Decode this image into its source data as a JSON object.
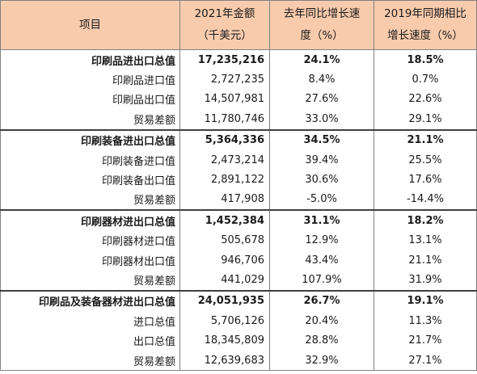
{
  "header": {
    "col1": "项目",
    "col2": [
      "2021年金额",
      "（千美元）"
    ],
    "col3": [
      "去年同比增长速",
      "度（%）"
    ],
    "col4": [
      "2019年同期相比",
      "增长速度（%）"
    ]
  },
  "rows": [
    {
      "item": "印刷品进出口总值",
      "amount": "17,235,216",
      "yoy": "24.1%",
      "vs2019": "18.5%"
    },
    {
      "item": "印刷品进口值",
      "amount": "2,727,235",
      "yoy": "8.4%",
      "vs2019": "0.7%"
    },
    {
      "item": "印刷品出口值",
      "amount": "14,507,981",
      "yoy": "27.6%",
      "vs2019": "22.6%"
    },
    {
      "item": "贸易差额",
      "amount": "11,780,746",
      "yoy": "33.0%",
      "vs2019": "29.1%"
    },
    {
      "item": "印刷装备进出口总值",
      "amount": "5,364,336",
      "yoy": "34.5%",
      "vs2019": "21.1%"
    },
    {
      "item": "印刷装备进口值",
      "amount": "2,473,214",
      "yoy": "39.4%",
      "vs2019": "25.5%"
    },
    {
      "item": "印刷装备出口值",
      "amount": "2,891,122",
      "yoy": "30.6%",
      "vs2019": "17.6%"
    },
    {
      "item": "贸易差额",
      "amount": "417,908",
      "yoy": "-5.0%",
      "vs2019": "-14.4%"
    },
    {
      "item": "印刷器材进出口总值",
      "amount": "1,452,384",
      "yoy": "31.1%",
      "vs2019": "18.2%"
    },
    {
      "item": "印刷器材进口值",
      "amount": "505,678",
      "yoy": "12.9%",
      "vs2019": "13.1%"
    },
    {
      "item": "印刷器材出口值",
      "amount": "946,706",
      "yoy": "43.4%",
      "vs2019": "21.1%"
    },
    {
      "item": "贸易差额",
      "amount": "441,029",
      "yoy": "107.9%",
      "vs2019": "31.9%"
    },
    {
      "item": "印刷品及装备器材进出口总值",
      "amount": "24,051,935",
      "yoy": "26.7%",
      "vs2019": "19.1%"
    },
    {
      "item": "进口总值",
      "amount": "5,706,126",
      "yoy": "20.4%",
      "vs2019": "11.3%"
    },
    {
      "item": "出口总值",
      "amount": "18,345,809",
      "yoy": "28.8%",
      "vs2019": "21.7%"
    },
    {
      "item": "贸易差额",
      "amount": "12,639,683",
      "yoy": "32.9%",
      "vs2019": "27.1%"
    }
  ]
}
